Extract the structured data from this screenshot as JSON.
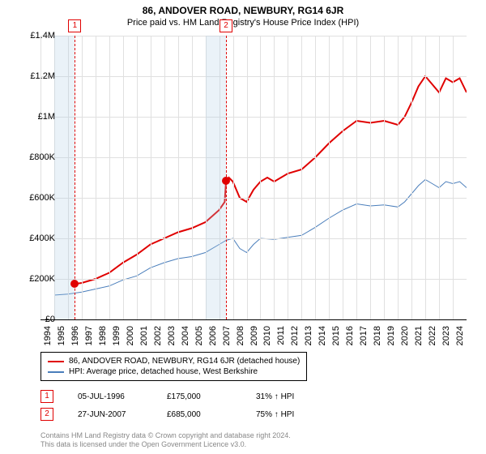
{
  "title": "86, ANDOVER ROAD, NEWBURY, RG14 6JR",
  "subtitle": "Price paid vs. HM Land Registry's House Price Index (HPI)",
  "chart": {
    "type": "line",
    "background": "#ffffff",
    "grid_color": "#e0e0e0",
    "xlim": [
      1994,
      2025
    ],
    "ylim": [
      0,
      1400000
    ],
    "y_ticks": [
      0,
      200000,
      400000,
      600000,
      800000,
      1000000,
      1200000,
      1400000
    ],
    "y_tick_labels": [
      "£0",
      "£200K",
      "£400K",
      "£600K",
      "£800K",
      "£1M",
      "£1.2M",
      "£1.4M"
    ],
    "x_ticks": [
      1994,
      1995,
      1996,
      1997,
      1998,
      1999,
      2000,
      2001,
      2002,
      2003,
      2004,
      2005,
      2006,
      2007,
      2008,
      2009,
      2010,
      2011,
      2012,
      2013,
      2014,
      2015,
      2016,
      2017,
      2018,
      2019,
      2020,
      2021,
      2022,
      2023,
      2024
    ],
    "label_fontsize": 11,
    "shade_ranges": [
      {
        "from": 1995,
        "to": 1996.5,
        "color": "rgba(173,203,227,0.25)"
      },
      {
        "from": 2006,
        "to": 2007.5,
        "color": "rgba(173,203,227,0.25)"
      }
    ],
    "markers": [
      {
        "id": "1",
        "x": 1996.5,
        "price": 175000
      },
      {
        "id": "2",
        "x": 2007.5,
        "price": 685000
      }
    ],
    "series": [
      {
        "name": "86, ANDOVER ROAD, NEWBURY, RG14 6JR (detached house)",
        "color": "#e00000",
        "width": 2,
        "data": [
          [
            1996.5,
            175000
          ],
          [
            1997,
            180000
          ],
          [
            1998,
            200000
          ],
          [
            1999,
            230000
          ],
          [
            2000,
            280000
          ],
          [
            2001,
            320000
          ],
          [
            2002,
            370000
          ],
          [
            2003,
            400000
          ],
          [
            2004,
            430000
          ],
          [
            2005,
            450000
          ],
          [
            2006,
            480000
          ],
          [
            2007,
            540000
          ],
          [
            2007.4,
            580000
          ],
          [
            2007.5,
            685000
          ],
          [
            2007.7,
            700000
          ],
          [
            2008,
            680000
          ],
          [
            2008.5,
            600000
          ],
          [
            2009,
            580000
          ],
          [
            2009.5,
            640000
          ],
          [
            2010,
            680000
          ],
          [
            2010.5,
            700000
          ],
          [
            2011,
            680000
          ],
          [
            2011.5,
            700000
          ],
          [
            2012,
            720000
          ],
          [
            2013,
            740000
          ],
          [
            2014,
            800000
          ],
          [
            2015,
            870000
          ],
          [
            2016,
            930000
          ],
          [
            2017,
            980000
          ],
          [
            2018,
            970000
          ],
          [
            2019,
            980000
          ],
          [
            2020,
            960000
          ],
          [
            2020.5,
            1000000
          ],
          [
            2021,
            1070000
          ],
          [
            2021.5,
            1150000
          ],
          [
            2022,
            1200000
          ],
          [
            2022.5,
            1160000
          ],
          [
            2023,
            1120000
          ],
          [
            2023.5,
            1190000
          ],
          [
            2024,
            1170000
          ],
          [
            2024.5,
            1190000
          ],
          [
            2025,
            1120000
          ]
        ]
      },
      {
        "name": "HPI: Average price, detached house, West Berkshire",
        "color": "#4a7ebb",
        "width": 1,
        "data": [
          [
            1995,
            120000
          ],
          [
            1996,
            125000
          ],
          [
            1997,
            135000
          ],
          [
            1998,
            150000
          ],
          [
            1999,
            165000
          ],
          [
            2000,
            195000
          ],
          [
            2001,
            215000
          ],
          [
            2002,
            255000
          ],
          [
            2003,
            280000
          ],
          [
            2004,
            300000
          ],
          [
            2005,
            310000
          ],
          [
            2006,
            330000
          ],
          [
            2007,
            370000
          ],
          [
            2007.5,
            390000
          ],
          [
            2008,
            400000
          ],
          [
            2008.5,
            350000
          ],
          [
            2009,
            330000
          ],
          [
            2009.5,
            370000
          ],
          [
            2010,
            400000
          ],
          [
            2011,
            395000
          ],
          [
            2012,
            405000
          ],
          [
            2013,
            415000
          ],
          [
            2014,
            455000
          ],
          [
            2015,
            500000
          ],
          [
            2016,
            540000
          ],
          [
            2017,
            570000
          ],
          [
            2018,
            560000
          ],
          [
            2019,
            565000
          ],
          [
            2020,
            555000
          ],
          [
            2020.5,
            580000
          ],
          [
            2021,
            620000
          ],
          [
            2021.5,
            660000
          ],
          [
            2022,
            690000
          ],
          [
            2022.5,
            670000
          ],
          [
            2023,
            650000
          ],
          [
            2023.5,
            680000
          ],
          [
            2024,
            670000
          ],
          [
            2024.5,
            680000
          ],
          [
            2025,
            650000
          ]
        ]
      }
    ]
  },
  "legend": {
    "items": [
      {
        "color": "#e00000",
        "label": "86, ANDOVER ROAD, NEWBURY, RG14 6JR (detached house)"
      },
      {
        "color": "#4a7ebb",
        "label": "HPI: Average price, detached house, West Berkshire"
      }
    ]
  },
  "sales": [
    {
      "id": "1",
      "date": "05-JUL-1996",
      "price": "£175,000",
      "delta": "31% ↑ HPI"
    },
    {
      "id": "2",
      "date": "27-JUN-2007",
      "price": "£685,000",
      "delta": "75% ↑ HPI"
    }
  ],
  "footer": {
    "line1": "Contains HM Land Registry data © Crown copyright and database right 2024.",
    "line2": "This data is licensed under the Open Government Licence v3.0."
  }
}
